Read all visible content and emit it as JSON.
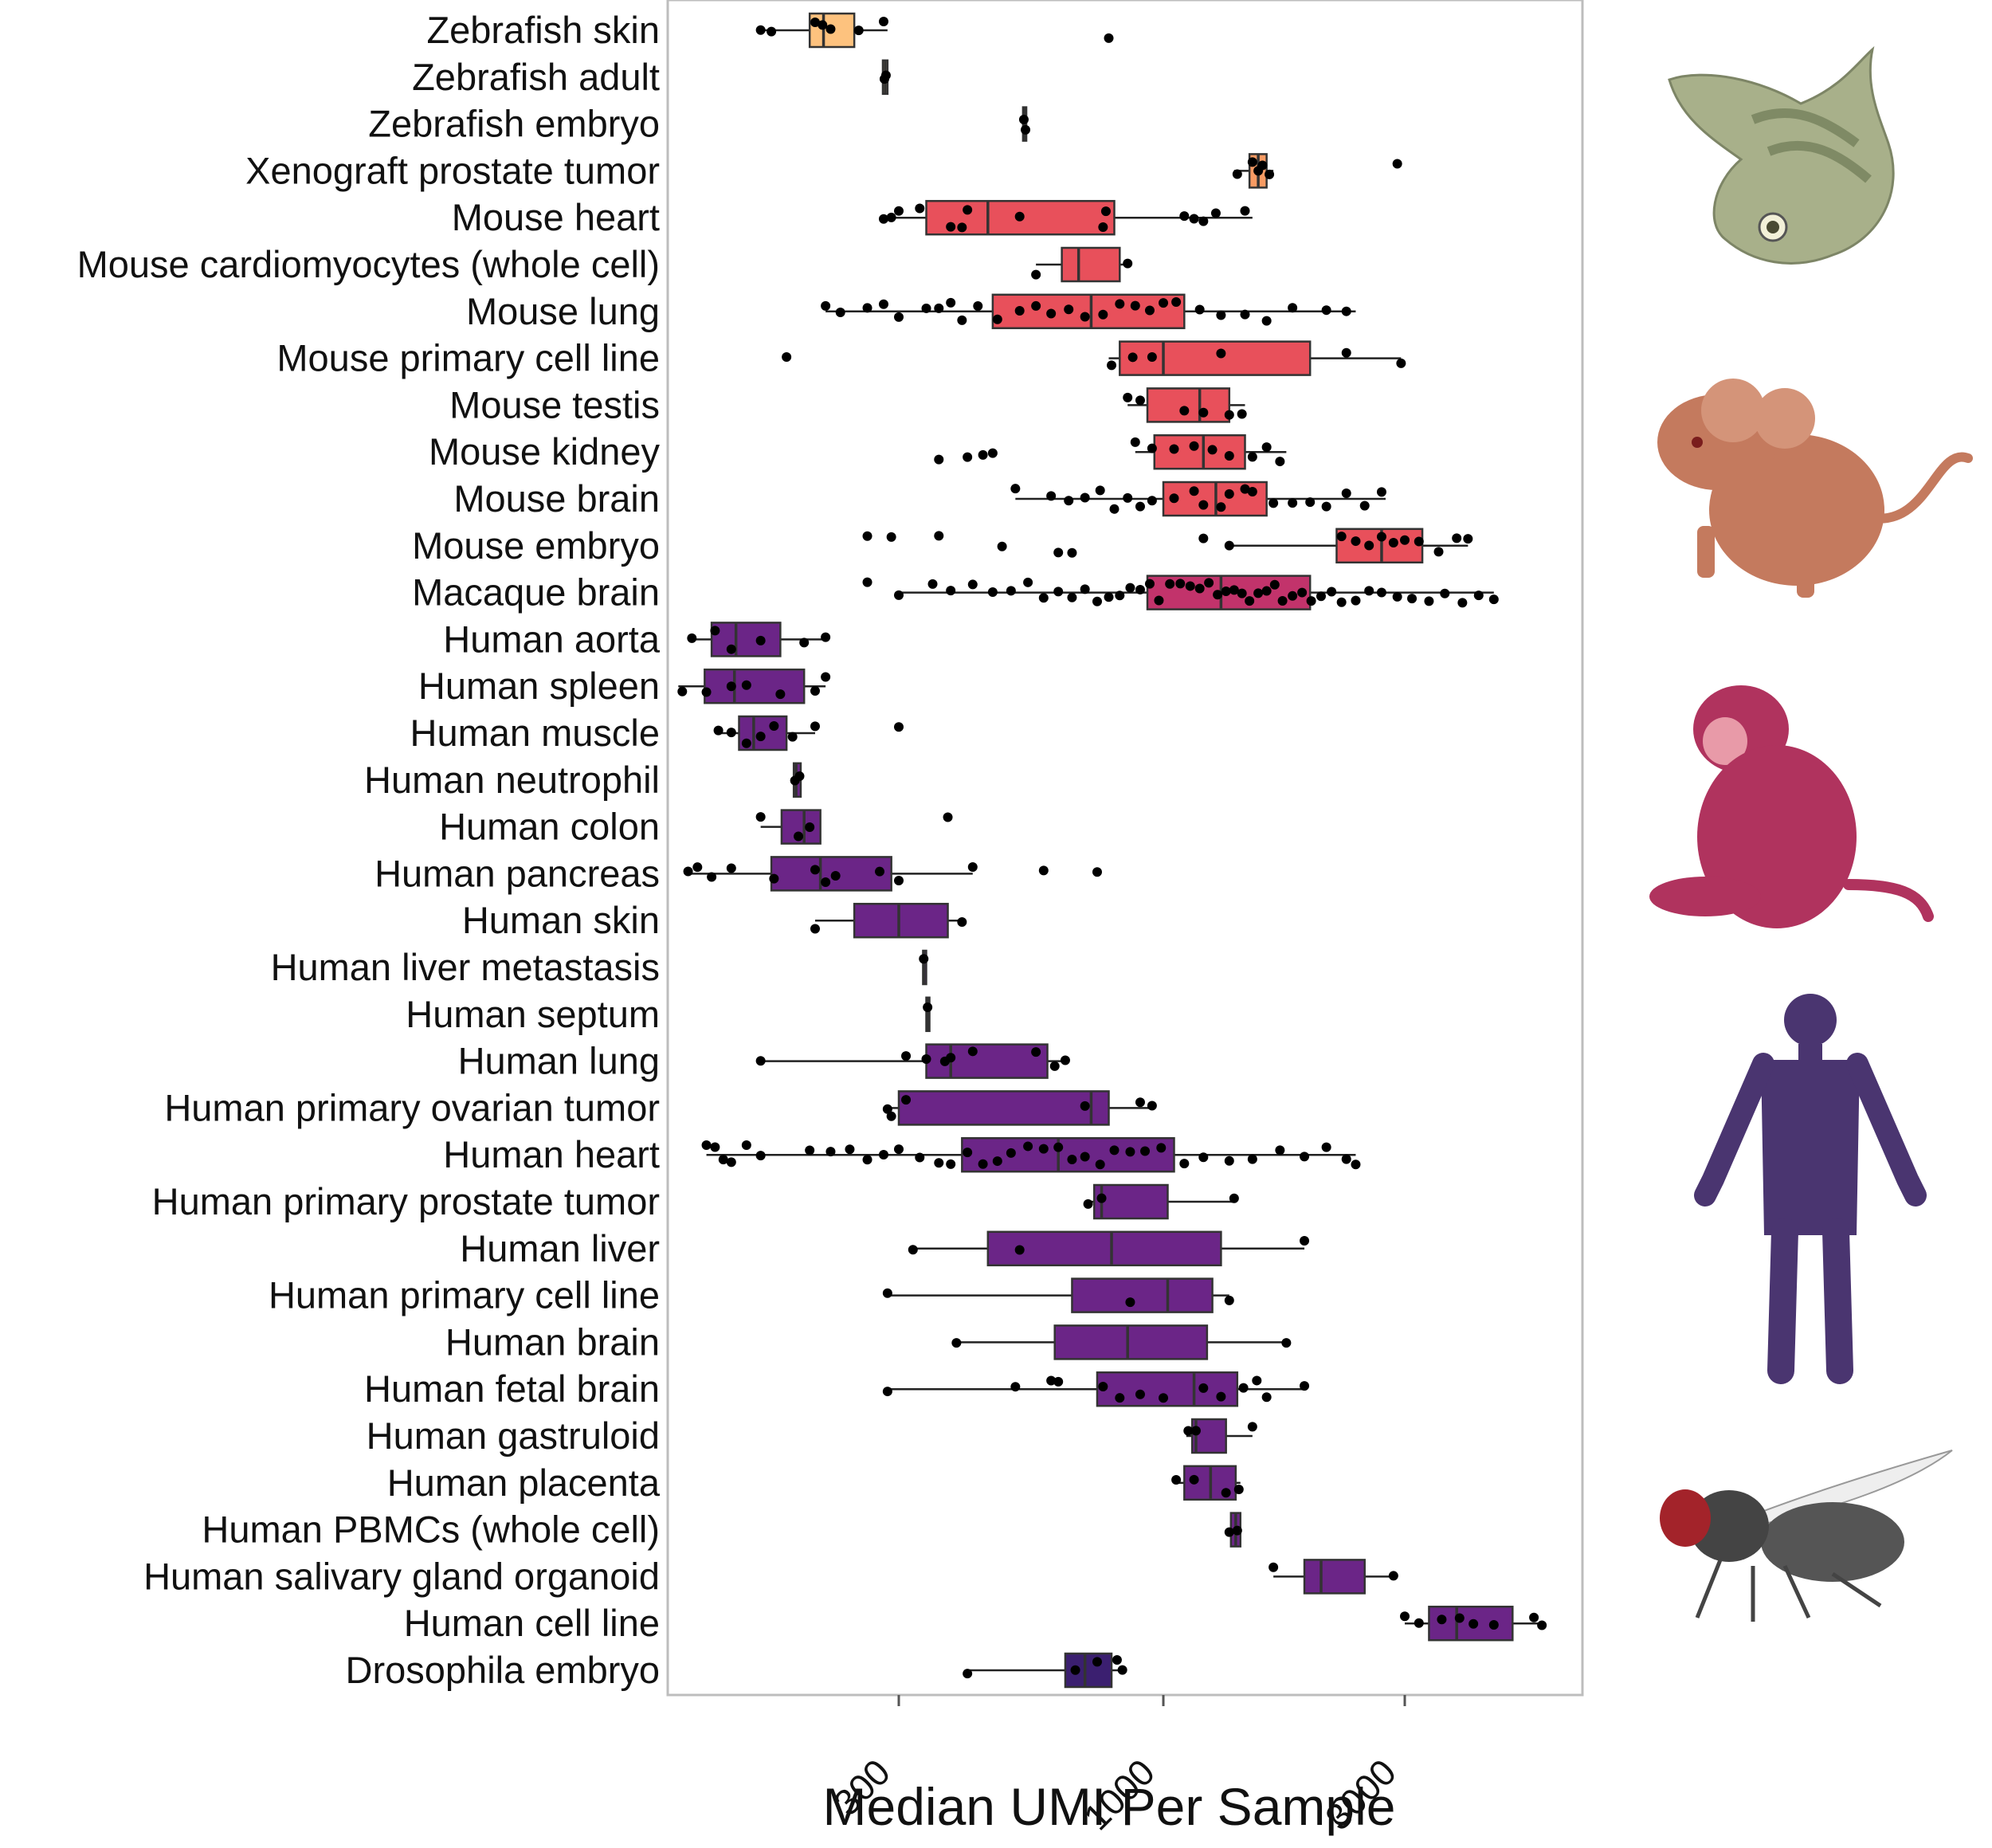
{
  "chart_data": {
    "type": "boxplot",
    "orientation": "horizontal",
    "xlabel": "Median UMI Per Sample",
    "x_scale": "log10",
    "xlim": [
      100,
      6500
    ],
    "x_ticks": [
      300,
      1000,
      3000
    ],
    "x_tick_labels": [
      "300",
      "1000",
      "3000"
    ],
    "grid": false,
    "legend": "none",
    "categories": [
      {
        "name": "Zebrafish skin",
        "color": "#fdc27e",
        "q1": 200,
        "median": 213,
        "q3": 245,
        "lo": 160,
        "hi": 285,
        "points": [
          160,
          168,
          205,
          212,
          220,
          250,
          280,
          780
        ]
      },
      {
        "name": "Zebrafish adult",
        "color": "#fdc27e",
        "q1": 279,
        "median": 282,
        "q3": 285,
        "lo": 279,
        "hi": 285,
        "points": [
          281,
          283
        ]
      },
      {
        "name": "Zebrafish embryo",
        "color": "#fdc27e",
        "q1": 528,
        "median": 532,
        "q3": 536,
        "lo": 528,
        "hi": 536,
        "points": [
          530,
          534
        ]
      },
      {
        "name": "Xenograft prostate tumor",
        "color": "#f89b63",
        "q1": 1480,
        "median": 1540,
        "q3": 1600,
        "lo": 1380,
        "hi": 1650,
        "points": [
          1400,
          1500,
          1540,
          1570,
          1620,
          2900
        ]
      },
      {
        "name": "Mouse heart",
        "color": "#e8505b",
        "q1": 340,
        "median": 450,
        "q3": 800,
        "lo": 280,
        "hi": 1500,
        "points": [
          280,
          290,
          300,
          330,
          380,
          400,
          410,
          520,
          760,
          770,
          1100,
          1150,
          1200,
          1270,
          1450
        ]
      },
      {
        "name": "Mouse cardiomyocytes (whole cell)",
        "color": "#e8505b",
        "q1": 630,
        "median": 680,
        "q3": 820,
        "lo": 560,
        "hi": 850,
        "points": [
          560,
          850
        ]
      },
      {
        "name": "Mouse lung",
        "color": "#e8505b",
        "q1": 460,
        "median": 720,
        "q3": 1100,
        "lo": 215,
        "hi": 2400,
        "points": [
          215,
          230,
          260,
          280,
          300,
          340,
          360,
          380,
          400,
          430,
          470,
          520,
          560,
          600,
          650,
          700,
          760,
          820,
          880,
          940,
          1000,
          1060,
          1180,
          1300,
          1450,
          1600,
          1800,
          2100,
          2300
        ]
      },
      {
        "name": "Mouse primary cell line",
        "color": "#e8505b",
        "q1": 820,
        "median": 1000,
        "q3": 1950,
        "lo": 780,
        "hi": 2950,
        "points": [
          180,
          790,
          870,
          950,
          1300,
          2300,
          2950
        ]
      },
      {
        "name": "Mouse testis",
        "color": "#e8505b",
        "q1": 930,
        "median": 1180,
        "q3": 1350,
        "lo": 850,
        "hi": 1450,
        "points": [
          850,
          900,
          1100,
          1200,
          1350,
          1430
        ]
      },
      {
        "name": "Mouse kidney",
        "color": "#e8505b",
        "q1": 960,
        "median": 1200,
        "q3": 1450,
        "lo": 880,
        "hi": 1750,
        "points": [
          360,
          410,
          440,
          460,
          880,
          950,
          1050,
          1150,
          1250,
          1350,
          1500,
          1600,
          1700
        ]
      },
      {
        "name": "Mouse brain",
        "color": "#e8505b",
        "q1": 1000,
        "median": 1270,
        "q3": 1600,
        "lo": 510,
        "hi": 2750,
        "points": [
          510,
          600,
          650,
          700,
          750,
          800,
          850,
          900,
          950,
          1050,
          1150,
          1200,
          1300,
          1350,
          1450,
          1500,
          1650,
          1800,
          1950,
          2100,
          2300,
          2500,
          2700
        ]
      },
      {
        "name": "Mouse embryo",
        "color": "#e8505b",
        "q1": 2200,
        "median": 2700,
        "q3": 3250,
        "lo": 1350,
        "hi": 4000,
        "points": [
          260,
          290,
          360,
          480,
          620,
          660,
          1200,
          1350,
          2250,
          2400,
          2550,
          2700,
          2850,
          3000,
          3200,
          3500,
          3800,
          4000
        ]
      },
      {
        "name": "Macaque brain",
        "color": "#c2336b",
        "q1": 930,
        "median": 1300,
        "q3": 1950,
        "lo": 300,
        "hi": 4500,
        "points": [
          260,
          300,
          350,
          380,
          420,
          460,
          500,
          540,
          580,
          620,
          660,
          700,
          740,
          780,
          820,
          860,
          900,
          940,
          980,
          1030,
          1080,
          1130,
          1180,
          1230,
          1280,
          1330,
          1380,
          1430,
          1480,
          1540,
          1600,
          1660,
          1720,
          1800,
          1880,
          1960,
          2050,
          2150,
          2250,
          2400,
          2550,
          2700,
          2900,
          3100,
          3350,
          3600,
          3900,
          4200,
          4500
        ]
      },
      {
        "name": "Human aorta",
        "color": "#6b2587",
        "q1": 128,
        "median": 143,
        "q3": 175,
        "lo": 115,
        "hi": 215,
        "points": [
          117,
          130,
          140,
          160,
          195,
          215
        ]
      },
      {
        "name": "Human spleen",
        "color": "#6b2587",
        "q1": 124,
        "median": 142,
        "q3": 195,
        "lo": 110,
        "hi": 215,
        "points": [
          112,
          125,
          140,
          150,
          175,
          205,
          215
        ]
      },
      {
        "name": "Human muscle",
        "color": "#6b2587",
        "q1": 145,
        "median": 155,
        "q3": 180,
        "lo": 130,
        "hi": 205,
        "points": [
          132,
          140,
          150,
          160,
          170,
          185,
          205,
          300
        ]
      },
      {
        "name": "Human neutrophil",
        "color": "#6b2587",
        "q1": 186,
        "median": 188,
        "q3": 192,
        "lo": 186,
        "hi": 192,
        "points": [
          187,
          191
        ]
      },
      {
        "name": "Human colon",
        "color": "#6b2587",
        "q1": 176,
        "median": 195,
        "q3": 210,
        "lo": 160,
        "hi": 210,
        "points": [
          160,
          190,
          200,
          375
        ]
      },
      {
        "name": "Human pancreas",
        "color": "#6b2587",
        "q1": 168,
        "median": 210,
        "q3": 290,
        "lo": 115,
        "hi": 420,
        "points": [
          115,
          120,
          128,
          140,
          170,
          205,
          215,
          225,
          275,
          300,
          420,
          580,
          740
        ]
      },
      {
        "name": "Human skin",
        "color": "#6b2587",
        "q1": 245,
        "median": 300,
        "q3": 375,
        "lo": 205,
        "hi": 400,
        "points": [
          205,
          400
        ]
      },
      {
        "name": "Human liver metastasis",
        "color": "#6b2587",
        "q1": 335,
        "median": 336,
        "q3": 338,
        "lo": 335,
        "hi": 338,
        "points": [
          336
        ]
      },
      {
        "name": "Human septum",
        "color": "#6b2587",
        "q1": 340,
        "median": 342,
        "q3": 344,
        "lo": 340,
        "hi": 344,
        "points": [
          342
        ]
      },
      {
        "name": "Human lung",
        "color": "#6b2587",
        "q1": 340,
        "median": 380,
        "q3": 590,
        "lo": 160,
        "hi": 650,
        "points": [
          160,
          310,
          340,
          370,
          380,
          420,
          560,
          610,
          640
        ]
      },
      {
        "name": "Human primary ovarian tumor",
        "color": "#6b2587",
        "q1": 300,
        "median": 720,
        "q3": 780,
        "lo": 285,
        "hi": 950,
        "points": [
          285,
          290,
          310,
          700,
          900,
          950
        ]
      },
      {
        "name": "Human heart",
        "color": "#6b2587",
        "q1": 400,
        "median": 620,
        "q3": 1050,
        "lo": 125,
        "hi": 2400,
        "points": [
          125,
          130,
          135,
          140,
          150,
          160,
          200,
          220,
          240,
          260,
          280,
          300,
          330,
          360,
          380,
          410,
          440,
          470,
          500,
          540,
          580,
          620,
          660,
          700,
          750,
          800,
          860,
          920,
          990,
          1100,
          1200,
          1350,
          1500,
          1700,
          1900,
          2100,
          2300,
          2400
        ]
      },
      {
        "name": "Human primary prostate tumor",
        "color": "#6b2587",
        "q1": 730,
        "median": 755,
        "q3": 1020,
        "lo": 710,
        "hi": 1380,
        "points": [
          710,
          755,
          1380
        ]
      },
      {
        "name": "Human liver",
        "color": "#6b2587",
        "q1": 450,
        "median": 790,
        "q3": 1300,
        "lo": 320,
        "hi": 1900,
        "points": [
          320,
          520,
          1900
        ]
      },
      {
        "name": "Human primary cell line",
        "color": "#6b2587",
        "q1": 660,
        "median": 1020,
        "q3": 1250,
        "lo": 285,
        "hi": 1350,
        "points": [
          285,
          860,
          1350
        ]
      },
      {
        "name": "Human brain",
        "color": "#6b2587",
        "q1": 610,
        "median": 850,
        "q3": 1220,
        "lo": 390,
        "hi": 1750,
        "points": [
          390,
          1750
        ]
      },
      {
        "name": "Human fetal brain",
        "color": "#6b2587",
        "q1": 740,
        "median": 1150,
        "q3": 1400,
        "lo": 285,
        "hi": 1900,
        "points": [
          285,
          510,
          600,
          620,
          760,
          820,
          900,
          1000,
          1200,
          1300,
          1440,
          1530,
          1600,
          1900
        ]
      },
      {
        "name": "Human gastruloid",
        "color": "#6b2587",
        "q1": 1140,
        "median": 1160,
        "q3": 1330,
        "lo": 1110,
        "hi": 1500,
        "points": [
          1120,
          1160,
          1500
        ]
      },
      {
        "name": "Human placenta",
        "color": "#6b2587",
        "q1": 1100,
        "median": 1240,
        "q3": 1390,
        "lo": 1060,
        "hi": 1420,
        "points": [
          1060,
          1150,
          1330,
          1410
        ]
      },
      {
        "name": "Human PBMCs (whole cell)",
        "color": "#6b2587",
        "q1": 1360,
        "median": 1390,
        "q3": 1420,
        "lo": 1340,
        "hi": 1420,
        "points": [
          1350,
          1400
        ]
      },
      {
        "name": "Human salivary gland organoid",
        "color": "#6b2587",
        "q1": 1900,
        "median": 2050,
        "q3": 2500,
        "lo": 1650,
        "hi": 2850,
        "points": [
          1650,
          2850
        ]
      },
      {
        "name": "Human cell line",
        "color": "#6b2587",
        "q1": 3350,
        "median": 3800,
        "q3": 4900,
        "lo": 3000,
        "hi": 5600,
        "points": [
          3000,
          3200,
          3550,
          3850,
          4100,
          4500,
          5400,
          5600
        ]
      },
      {
        "name": "Drosophila embryo",
        "color": "#3b1f70",
        "q1": 640,
        "median": 700,
        "q3": 790,
        "lo": 410,
        "hi": 830,
        "points": [
          410,
          670,
          740,
          810,
          830
        ]
      }
    ],
    "silhouettes": [
      {
        "label": "zebrafish",
        "color": "#a8b08a"
      },
      {
        "label": "mouse",
        "color": "#c47a5e"
      },
      {
        "label": "macaque",
        "color": "#b0335e"
      },
      {
        "label": "human",
        "color": "#4a3570"
      },
      {
        "label": "drosophila",
        "color": "#555555"
      }
    ]
  }
}
